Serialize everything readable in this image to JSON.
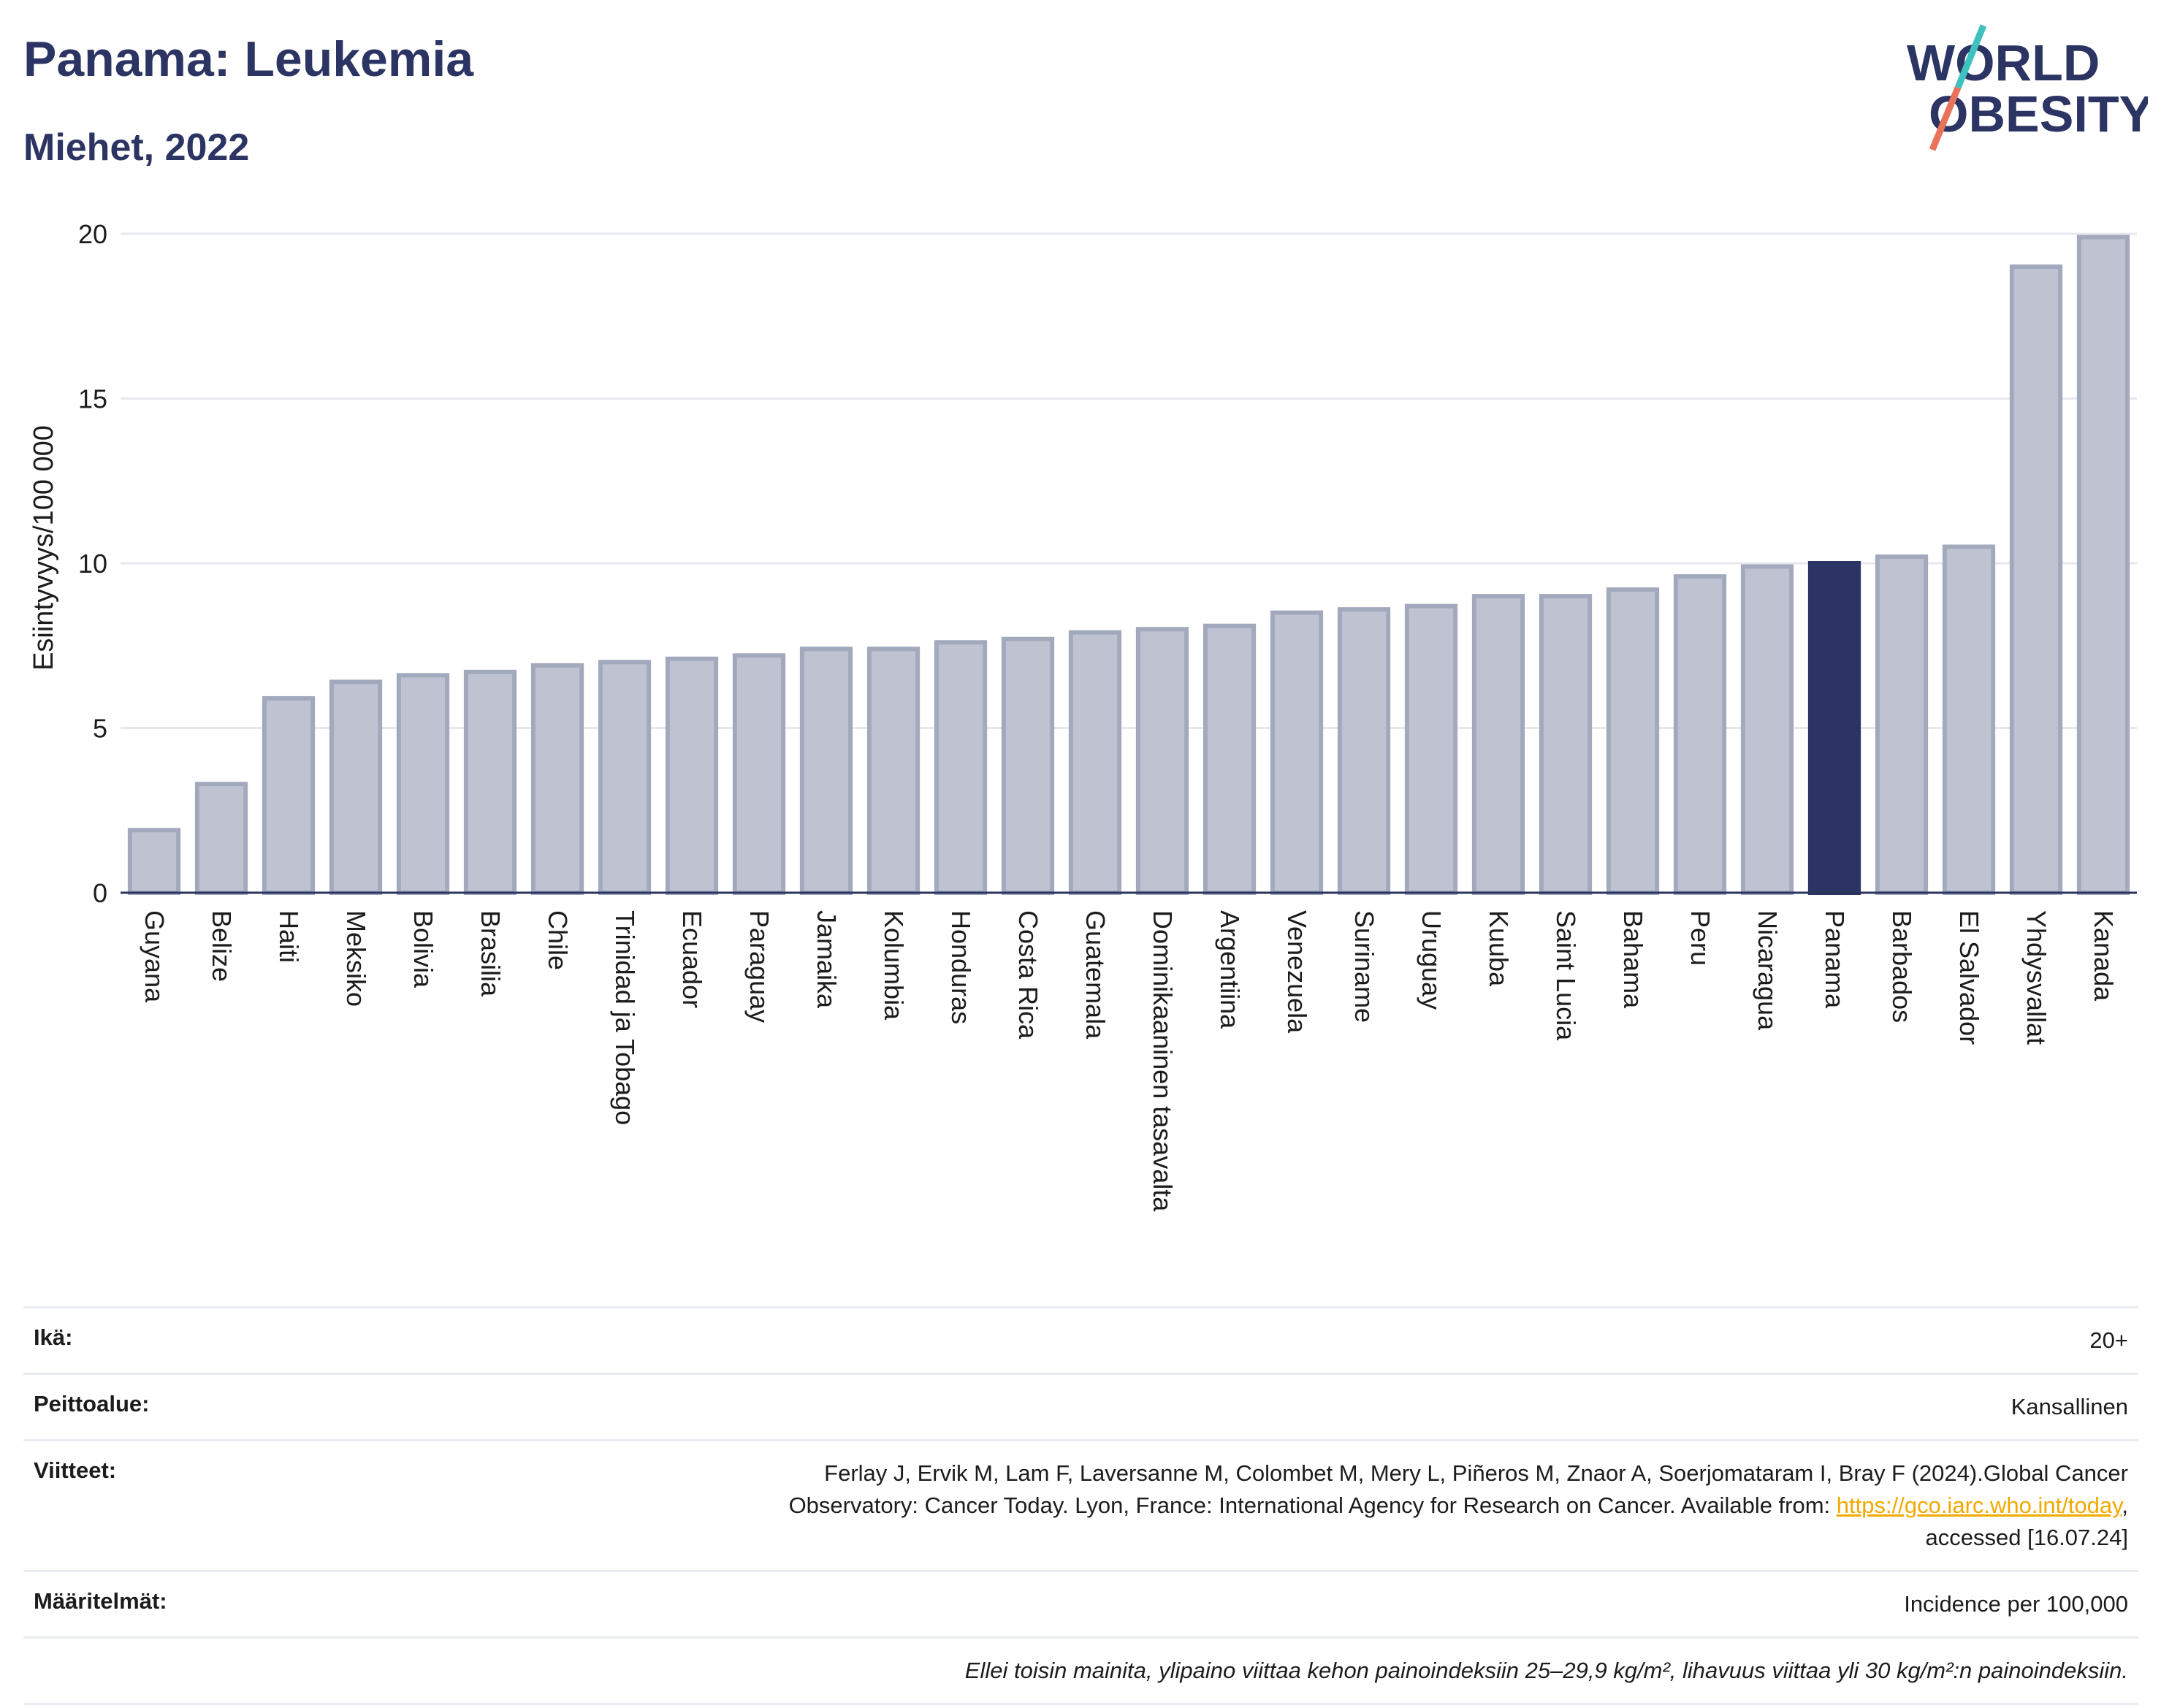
{
  "header": {
    "title": "Panama: Leukemia",
    "subtitle": "Miehet, 2022"
  },
  "logo": {
    "line1": "WORLD",
    "line2": "OBESITY",
    "name": "world-obesity-logo"
  },
  "colors": {
    "bar": "#bfc3d1",
    "bar_stroke": "#a3a9bd",
    "highlight": "#2b3462",
    "grid": "#e6e8ee",
    "axis": "#2a335e"
  },
  "chart_data": {
    "type": "bar",
    "ylabel": "Esiintyvyys/100 000",
    "ylim": [
      0,
      20
    ],
    "yticks": [
      0,
      5,
      10,
      15,
      20
    ],
    "highlight": "Panama",
    "categories": [
      "Guyana",
      "Belize",
      "Haiti",
      "Meksiko",
      "Bolivia",
      "Brasilia",
      "Chile",
      "Trinidad ja Tobago",
      "Ecuador",
      "Paraguay",
      "Jamaika",
      "Kolumbia",
      "Honduras",
      "Costa Rica",
      "Guatemala",
      "Dominikaaninen tasavalta",
      "Argentiina",
      "Venezuela",
      "Suriname",
      "Uruguay",
      "Kuuba",
      "Saint Lucia",
      "Bahama",
      "Peru",
      "Nicaragua",
      "Panama",
      "Barbados",
      "El Salvador",
      "Yhdysvallat",
      "Kanada"
    ],
    "values": [
      1.9,
      3.3,
      5.9,
      6.4,
      6.6,
      6.7,
      6.9,
      7.0,
      7.1,
      7.2,
      7.4,
      7.4,
      7.6,
      7.7,
      7.9,
      8.0,
      8.1,
      8.5,
      8.6,
      8.7,
      9.0,
      9.0,
      9.2,
      9.6,
      9.9,
      10.0,
      10.2,
      10.5,
      19.0,
      19.9
    ]
  },
  "meta": {
    "age_label": "Ikä:",
    "age_value": "20+",
    "coverage_label": "Peittoalue:",
    "coverage_value": "Kansallinen",
    "refs_label": "Viitteet:",
    "refs_line1": "Ferlay J, Ervik M, Lam F, Laversanne M, Colombet M, Mery L, Piñeros M, Znaor A, Soerjomataram I, Bray F (2024).Global Cancer",
    "refs_line2": "Observatory: Cancer Today. Lyon, France: International Agency for Research on Cancer. Available from: ",
    "refs_link": "https://gco.iarc.who.int/today",
    "refs_line2_end": ",",
    "refs_line3": "accessed [16.07.24]",
    "defs_label": "Määritelmät:",
    "defs_value": "Incidence per 100,000",
    "note": "Ellei toisin mainita, ylipaino viittaa kehon painoindeksiin 25–29,9 kg/m², lihavuus viittaa yli 30 kg/m²:n painoindeksiin."
  }
}
